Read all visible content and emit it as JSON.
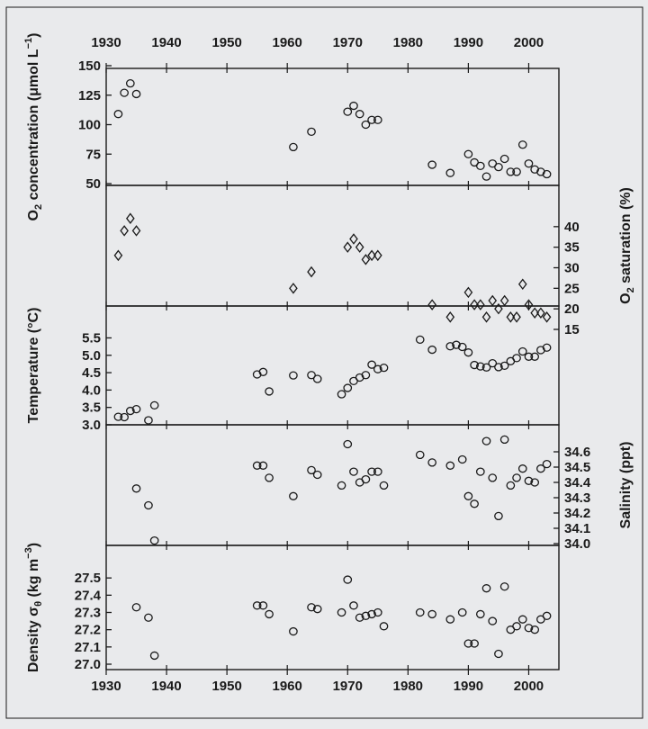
{
  "chart_data": {
    "type": "scatter",
    "x_axis": {
      "range": [
        1930,
        2005
      ],
      "ticks": [
        1930,
        1940,
        1950,
        1960,
        1970,
        1980,
        1990,
        2000
      ],
      "tick_labels": [
        "1930",
        "1940",
        "1950",
        "1960",
        "1970",
        "1980",
        "1990",
        "2000"
      ],
      "shown_top": true,
      "shown_bottom": true
    },
    "panels": [
      {
        "id": "o2-concentration",
        "ylabel": "O2 concentration (μmol L−1)",
        "ylabel_parts": {
          "pre": "O",
          "sub": "2",
          "mid": " concentration (μmol L",
          "sup": "−1",
          "post": ")"
        },
        "axis_side": "left",
        "ylim": [
          50,
          150
        ],
        "yticks": [
          50,
          75,
          100,
          125,
          150
        ],
        "ytick_labels": [
          "50",
          "75",
          "100",
          "125",
          "150"
        ],
        "marker": "circle",
        "points": [
          [
            1932,
            109
          ],
          [
            1933,
            127
          ],
          [
            1934,
            135
          ],
          [
            1935,
            126
          ],
          [
            1961,
            81
          ],
          [
            1964,
            94
          ],
          [
            1970,
            111
          ],
          [
            1971,
            116
          ],
          [
            1972,
            109
          ],
          [
            1973,
            100
          ],
          [
            1974,
            104
          ],
          [
            1975,
            104
          ],
          [
            1984,
            66
          ],
          [
            1987,
            59
          ],
          [
            1990,
            75
          ],
          [
            1991,
            68
          ],
          [
            1992,
            65
          ],
          [
            1993,
            56
          ],
          [
            1994,
            67
          ],
          [
            1995,
            64
          ],
          [
            1996,
            71
          ],
          [
            1997,
            60
          ],
          [
            1998,
            60
          ],
          [
            1999,
            83
          ],
          [
            2000,
            67
          ],
          [
            2001,
            62
          ],
          [
            2002,
            60
          ],
          [
            2003,
            58
          ]
        ]
      },
      {
        "id": "o2-saturation",
        "ylabel": "O2 saturation (%)",
        "ylabel_parts": {
          "pre": "O",
          "sub": "2",
          "mid": " saturation (%)",
          "sup": "",
          "post": ""
        },
        "axis_side": "right",
        "ylim": [
          15,
          45
        ],
        "yticks": [
          15,
          20,
          25,
          30,
          35,
          40
        ],
        "ytick_labels": [
          "15",
          "20",
          "25",
          "30",
          "35",
          "40"
        ],
        "marker": "diamond",
        "points": [
          [
            1932,
            33
          ],
          [
            1933,
            39
          ],
          [
            1934,
            42
          ],
          [
            1935,
            39
          ],
          [
            1961,
            25
          ],
          [
            1964,
            29
          ],
          [
            1970,
            35
          ],
          [
            1971,
            37
          ],
          [
            1972,
            35
          ],
          [
            1973,
            32
          ],
          [
            1974,
            33
          ],
          [
            1975,
            33
          ],
          [
            1984,
            21
          ],
          [
            1987,
            18
          ],
          [
            1990,
            24
          ],
          [
            1991,
            21
          ],
          [
            1992,
            21
          ],
          [
            1993,
            18
          ],
          [
            1994,
            22
          ],
          [
            1995,
            20
          ],
          [
            1996,
            22
          ],
          [
            1997,
            18
          ],
          [
            1998,
            18
          ],
          [
            1999,
            26
          ],
          [
            2000,
            21
          ],
          [
            2001,
            19
          ],
          [
            2002,
            19
          ],
          [
            2003,
            18
          ]
        ]
      },
      {
        "id": "temperature",
        "ylabel": "Temperature (°C)",
        "ylabel_parts": {
          "pre": "Temperature (°C)",
          "sub": "",
          "mid": "",
          "sup": "",
          "post": ""
        },
        "axis_side": "left",
        "ylim": [
          3.0,
          5.9
        ],
        "yticks": [
          3.0,
          3.5,
          4.0,
          4.5,
          5.0,
          5.5
        ],
        "ytick_labels": [
          "3.0",
          "3.5",
          "4.0",
          "4.5",
          "5.0",
          "5.5"
        ],
        "marker": "circle",
        "points": [
          [
            1932,
            3.23
          ],
          [
            1933,
            3.22
          ],
          [
            1934,
            3.4
          ],
          [
            1935,
            3.45
          ],
          [
            1937,
            3.13
          ],
          [
            1938,
            3.56
          ],
          [
            1955,
            4.45
          ],
          [
            1956,
            4.52
          ],
          [
            1957,
            3.96
          ],
          [
            1961,
            4.42
          ],
          [
            1964,
            4.43
          ],
          [
            1965,
            4.32
          ],
          [
            1969,
            3.88
          ],
          [
            1970,
            4.06
          ],
          [
            1971,
            4.26
          ],
          [
            1972,
            4.36
          ],
          [
            1973,
            4.43
          ],
          [
            1974,
            4.73
          ],
          [
            1975,
            4.6
          ],
          [
            1976,
            4.64
          ],
          [
            1982,
            5.45
          ],
          [
            1984,
            5.16
          ],
          [
            1987,
            5.26
          ],
          [
            1988,
            5.3
          ],
          [
            1989,
            5.24
          ],
          [
            1990,
            5.08
          ],
          [
            1991,
            4.72
          ],
          [
            1992,
            4.68
          ],
          [
            1993,
            4.65
          ],
          [
            1994,
            4.77
          ],
          [
            1995,
            4.66
          ],
          [
            1996,
            4.7
          ],
          [
            1997,
            4.83
          ],
          [
            1998,
            4.92
          ],
          [
            1999,
            5.11
          ],
          [
            2000,
            4.96
          ],
          [
            2001,
            4.96
          ],
          [
            2002,
            5.15
          ],
          [
            2003,
            5.22
          ]
        ]
      },
      {
        "id": "salinity",
        "ylabel": "Salinity (ppt)",
        "ylabel_parts": {
          "pre": "Salinity (ppt)",
          "sub": "",
          "mid": "",
          "sup": "",
          "post": ""
        },
        "axis_side": "right",
        "ylim": [
          34.0,
          34.7
        ],
        "yticks": [
          34.0,
          34.1,
          34.2,
          34.3,
          34.4,
          34.5,
          34.6
        ],
        "ytick_labels": [
          "34.0",
          "34.1",
          "34.2",
          "34.3",
          "34.4",
          "34.5",
          "34.6"
        ],
        "marker": "circle",
        "points": [
          [
            1935,
            34.36
          ],
          [
            1937,
            34.25
          ],
          [
            1938,
            34.02
          ],
          [
            1955,
            34.51
          ],
          [
            1956,
            34.51
          ],
          [
            1957,
            34.43
          ],
          [
            1961,
            34.31
          ],
          [
            1964,
            34.48
          ],
          [
            1965,
            34.45
          ],
          [
            1969,
            34.38
          ],
          [
            1970,
            34.65
          ],
          [
            1971,
            34.47
          ],
          [
            1972,
            34.4
          ],
          [
            1973,
            34.42
          ],
          [
            1974,
            34.47
          ],
          [
            1975,
            34.47
          ],
          [
            1976,
            34.38
          ],
          [
            1982,
            34.58
          ],
          [
            1984,
            34.53
          ],
          [
            1987,
            34.51
          ],
          [
            1989,
            34.55
          ],
          [
            1990,
            34.31
          ],
          [
            1991,
            34.26
          ],
          [
            1992,
            34.47
          ],
          [
            1993,
            34.67
          ],
          [
            1994,
            34.43
          ],
          [
            1995,
            34.18
          ],
          [
            1996,
            34.68
          ],
          [
            1997,
            34.38
          ],
          [
            1998,
            34.43
          ],
          [
            1999,
            34.49
          ],
          [
            2000,
            34.41
          ],
          [
            2001,
            34.4
          ],
          [
            2002,
            34.49
          ],
          [
            2003,
            34.52
          ]
        ]
      },
      {
        "id": "density",
        "ylabel": "Density σθ (kg m−3)",
        "ylabel_parts": {
          "pre": "Density σ",
          "sub": "θ",
          "mid": " (kg m",
          "sup": "−3",
          "post": ")"
        },
        "axis_side": "left",
        "ylim": [
          27.0,
          27.6
        ],
        "yticks": [
          27.0,
          27.1,
          27.2,
          27.3,
          27.4,
          27.5
        ],
        "ytick_labels": [
          "27.0",
          "27.1",
          "27.2",
          "27.3",
          "27.4",
          "27.5"
        ],
        "marker": "circle",
        "points": [
          [
            1935,
            27.33
          ],
          [
            1937,
            27.27
          ],
          [
            1938,
            27.05
          ],
          [
            1955,
            27.34
          ],
          [
            1956,
            27.34
          ],
          [
            1957,
            27.29
          ],
          [
            1961,
            27.19
          ],
          [
            1964,
            27.33
          ],
          [
            1965,
            27.32
          ],
          [
            1969,
            27.3
          ],
          [
            1970,
            27.49
          ],
          [
            1971,
            27.34
          ],
          [
            1972,
            27.27
          ],
          [
            1973,
            27.28
          ],
          [
            1974,
            27.29
          ],
          [
            1975,
            27.3
          ],
          [
            1976,
            27.22
          ],
          [
            1982,
            27.3
          ],
          [
            1984,
            27.29
          ],
          [
            1987,
            27.26
          ],
          [
            1989,
            27.3
          ],
          [
            1990,
            27.12
          ],
          [
            1991,
            27.12
          ],
          [
            1992,
            27.29
          ],
          [
            1993,
            27.44
          ],
          [
            1994,
            27.25
          ],
          [
            1995,
            27.06
          ],
          [
            1996,
            27.45
          ],
          [
            1997,
            27.2
          ],
          [
            1998,
            27.22
          ],
          [
            1999,
            27.26
          ],
          [
            2000,
            27.21
          ],
          [
            2001,
            27.2
          ],
          [
            2002,
            27.26
          ],
          [
            2003,
            27.28
          ]
        ]
      }
    ]
  }
}
